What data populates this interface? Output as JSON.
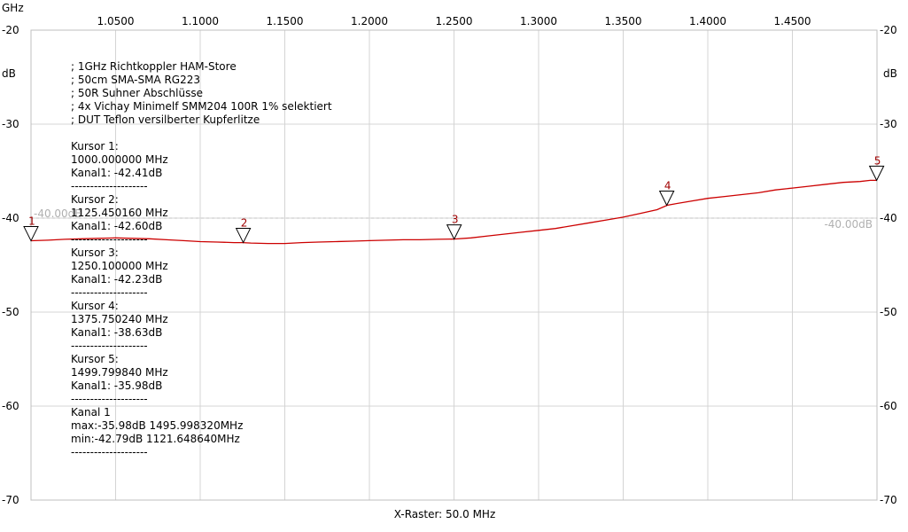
{
  "chart_data": {
    "type": "line",
    "x_unit_label": "GHz",
    "x_ticks": [
      "1.0500",
      "1.1000",
      "1.1500",
      "1.2000",
      "1.2500",
      "1.3000",
      "1.3500",
      "1.4000",
      "1.4500"
    ],
    "xlim": [
      1.0,
      1.5
    ],
    "y_unit_label": "dB",
    "y_ticks": [
      "-20",
      "-30",
      "-40",
      "-50",
      "-60",
      "-70"
    ],
    "ylim": [
      -70,
      -20
    ],
    "grid": true,
    "xlabel": "X-Raster: 50.0 MHz",
    "reference_line": {
      "value": -40,
      "label": "-40.00dB",
      "label_right": "-40.00dB",
      "color": "#c0c0c0"
    },
    "series": [
      {
        "color": "#cc0000",
        "x": [
          1.0,
          1.01,
          1.02,
          1.03,
          1.04,
          1.05,
          1.06,
          1.07,
          1.08,
          1.09,
          1.1,
          1.11,
          1.12,
          1.125,
          1.13,
          1.14,
          1.15,
          1.16,
          1.17,
          1.18,
          1.19,
          1.2,
          1.21,
          1.22,
          1.23,
          1.24,
          1.25,
          1.26,
          1.27,
          1.28,
          1.29,
          1.3,
          1.31,
          1.32,
          1.33,
          1.34,
          1.35,
          1.36,
          1.37,
          1.376,
          1.38,
          1.39,
          1.4,
          1.41,
          1.42,
          1.43,
          1.44,
          1.45,
          1.46,
          1.47,
          1.48,
          1.49,
          1.496,
          1.5
        ],
        "y": [
          -42.41,
          -42.35,
          -42.25,
          -42.2,
          -42.15,
          -42.1,
          -42.15,
          -42.2,
          -42.3,
          -42.4,
          -42.5,
          -42.55,
          -42.6,
          -42.6,
          -42.65,
          -42.7,
          -42.7,
          -42.6,
          -42.55,
          -42.5,
          -42.45,
          -42.4,
          -42.35,
          -42.3,
          -42.3,
          -42.25,
          -42.23,
          -42.1,
          -41.9,
          -41.7,
          -41.5,
          -41.3,
          -41.1,
          -40.8,
          -40.5,
          -40.2,
          -39.9,
          -39.5,
          -39.1,
          -38.63,
          -38.5,
          -38.2,
          -37.9,
          -37.7,
          -37.5,
          -37.3,
          -37.0,
          -36.8,
          -36.6,
          -36.4,
          -36.2,
          -36.1,
          -35.98,
          -35.98
        ]
      }
    ],
    "markers": [
      {
        "label": "1",
        "x": 1.0,
        "y": -42.41
      },
      {
        "label": "2",
        "x": 1.12545016,
        "y": -42.6
      },
      {
        "label": "3",
        "x": 1.2501,
        "y": -42.23
      },
      {
        "label": "4",
        "x": 1.37575024,
        "y": -38.63
      },
      {
        "label": "5",
        "x": 1.49979984,
        "y": -35.98
      }
    ]
  },
  "info": {
    "lines": [
      "; 1GHz Richtkoppler HAM-Store",
      "; 50cm SMA-SMA RG223",
      "; 50R Suhner Abschlüsse",
      "; 4x Vichay Minimelf SMM204 100R 1% selektiert",
      "; DUT Teflon versilberter Kupferlitze",
      "",
      "Kursor 1:",
      "1000.000000 MHz",
      "Kanal1: -42.41dB",
      "--------------------",
      "Kursor 2:",
      "1125.450160 MHz",
      "Kanal1: -42.60dB",
      "--------------------",
      "Kursor 3:",
      "1250.100000 MHz",
      "Kanal1: -42.23dB",
      "--------------------",
      "Kursor 4:",
      "1375.750240 MHz",
      "Kanal1: -38.63dB",
      "--------------------",
      "Kursor 5:",
      "1499.799840 MHz",
      "Kanal1: -35.98dB",
      "--------------------",
      "Kanal 1",
      "max:-35.98dB 1495.998320MHz",
      "min:-42.79dB 1121.648640MHz",
      "--------------------"
    ]
  }
}
